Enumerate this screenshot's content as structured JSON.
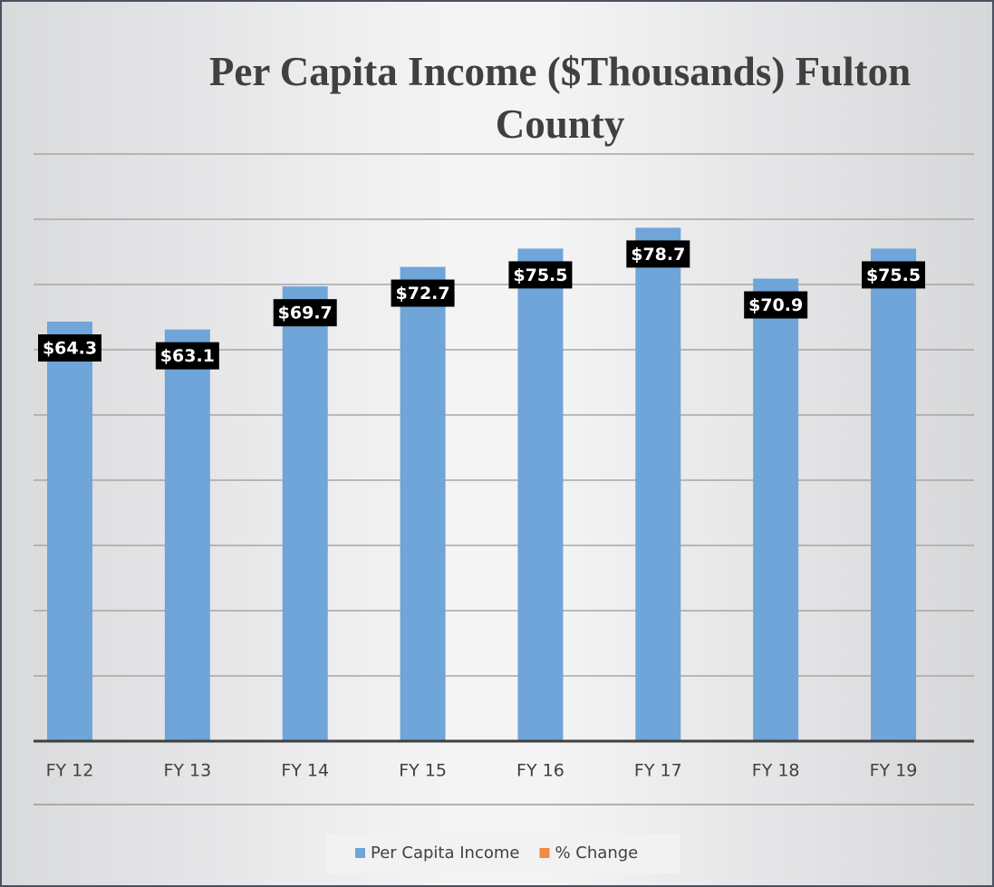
{
  "chart_data": {
    "type": "bar",
    "title": "Per Capita Income ($Thousands) Fulton County",
    "categories": [
      "FY 12",
      "FY 13",
      "FY 14",
      "FY 15",
      "FY 16",
      "FY 17",
      "FY 18",
      "FY 19"
    ],
    "series": [
      {
        "name": "Per Capita Income",
        "color": "#6fa5d8",
        "values": [
          64.3,
          63.1,
          69.7,
          72.7,
          75.5,
          78.7,
          70.9,
          75.5
        ],
        "value_labels": [
          "$64.3",
          "$63.1",
          "$69.7",
          "$72.7",
          "$75.5",
          "$78.7",
          "$70.9",
          "$75.5"
        ]
      },
      {
        "name": "% Change",
        "color": "#f08a45",
        "values": [
          null,
          null,
          null,
          null,
          null,
          null,
          null,
          null
        ]
      }
    ],
    "ylim": [
      0,
      90
    ],
    "yticks": [
      0,
      10,
      20,
      30,
      40,
      50,
      60,
      70,
      80,
      90
    ],
    "grid": true,
    "legend": "bottom"
  }
}
